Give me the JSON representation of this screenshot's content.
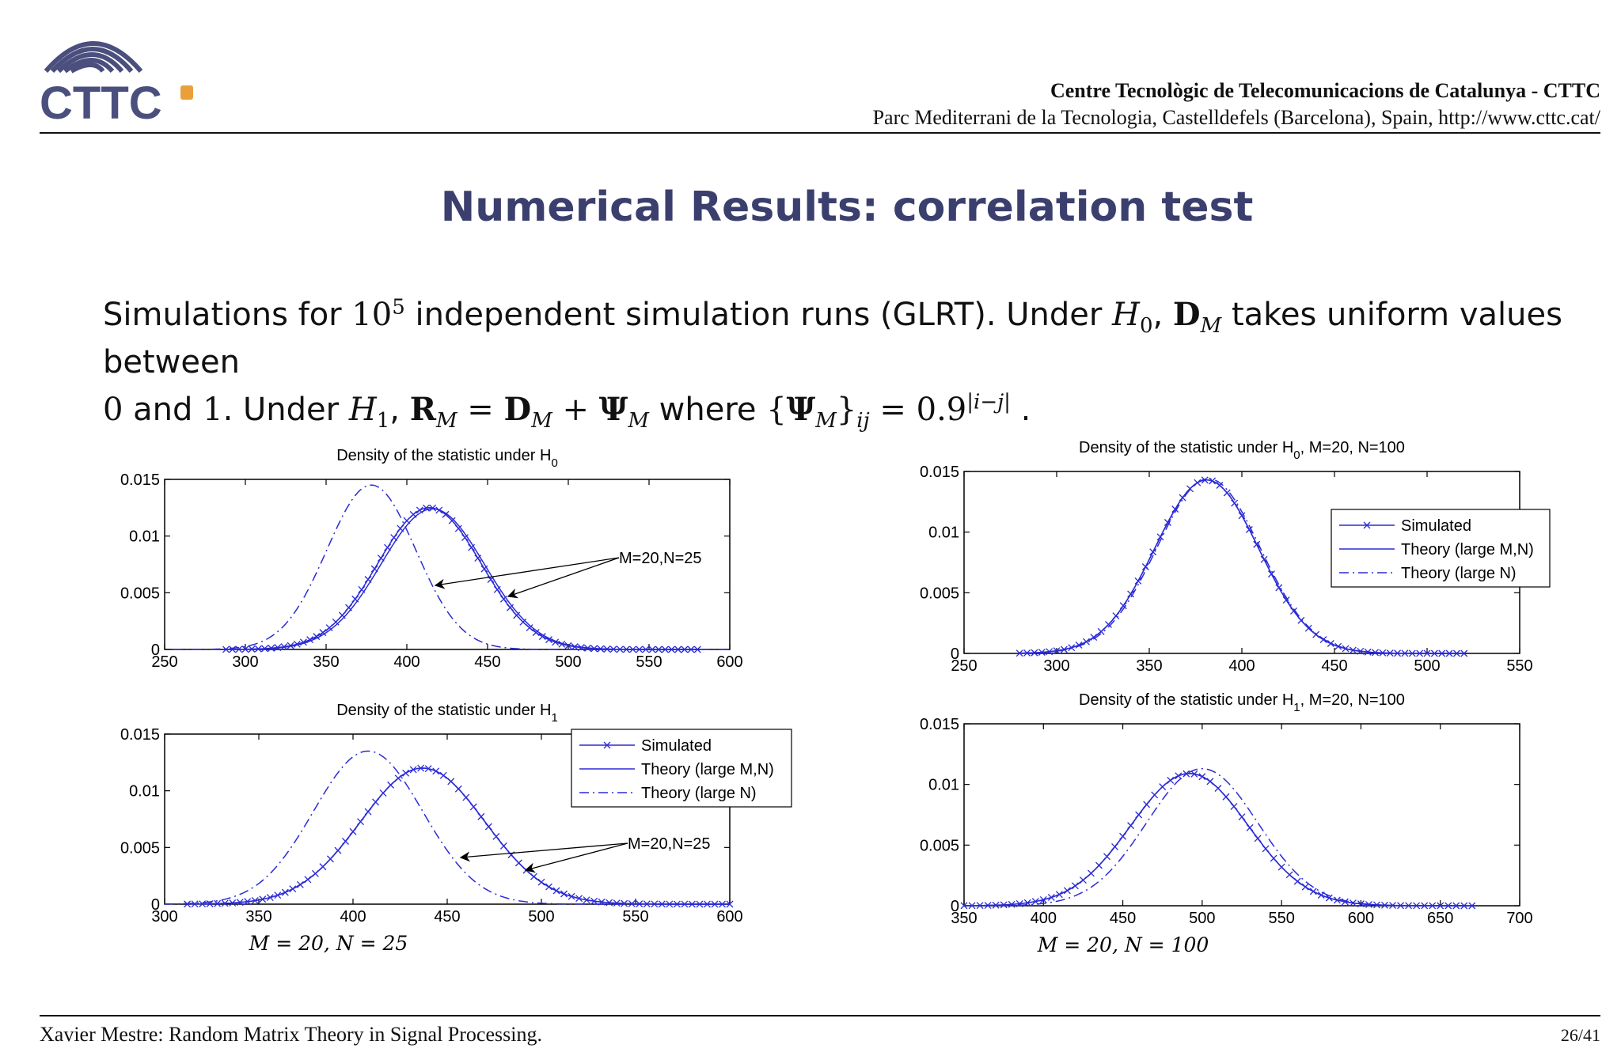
{
  "header": {
    "logo_text": "CTTC",
    "institution": "Centre Tecnològic de Telecomunicacions de Catalunya - CTTC",
    "address": "Parc Mediterrani de la Tecnologia, Castelldefels (Barcelona), Spain, http://www.cttc.cat/"
  },
  "slide": {
    "title": "Numerical Results: correlation test",
    "line1": {
      "t1": "Simulations for ",
      "pow_base": "10",
      "pow_exp": "5",
      "t2": " independent simulation runs (GLRT). Under ",
      "h0": "H",
      "h0_sub": "0",
      "comma": ", ",
      "d": "D",
      "d_sub": "M",
      "t3": " takes uniform values between"
    },
    "line2": {
      "zero": "0",
      "t1": " and ",
      "one": "1",
      "t2": ".  Under ",
      "h1": "H",
      "h1_sub": "1",
      "comma": ", ",
      "r": "R",
      "r_sub": "M",
      "eq1": " = ",
      "d": "D",
      "d_sub": "M",
      "plus": " + ",
      "psi": "Ψ",
      "psi_sub": "M",
      "t3": " where ",
      "lbrace": "{",
      "psi2": "Ψ",
      "psi2_sub": "M",
      "rbrace": "}",
      "ij": "ij",
      "eq2": " = ",
      "base": "0.9",
      "exp": "|i−j|",
      "end": " ."
    }
  },
  "footer": {
    "left": "Xavier Mestre: Random Matrix Theory in Signal Processing.",
    "right": "26/41"
  },
  "colors": {
    "title": "#3b3f6e",
    "curve": "#2b2bd6",
    "logo": "#4a4f7d",
    "logo_accent": "#e8a13a"
  },
  "chart_data": [
    {
      "type": "line",
      "title": "Density of the statistic under H",
      "title_sub": "0",
      "title_suffix": "",
      "xlim": [
        250,
        600
      ],
      "ylim": [
        0,
        0.015
      ],
      "xticks": [
        "250",
        "300",
        "350",
        "400",
        "450",
        "500",
        "550",
        "600"
      ],
      "yticks": [
        "0",
        "0.005",
        "0.01",
        "0.015"
      ],
      "caption": "",
      "annotation": "M=20,N=25",
      "series": [
        {
          "style": "markers",
          "curve": {
            "mean": 414,
            "sd": 32,
            "peak": 0.0125
          },
          "x_range": [
            288,
            580
          ],
          "marker_step": 4
        },
        {
          "style": "solid",
          "curve": {
            "mean": 416,
            "sd": 32,
            "peak": 0.0124
          },
          "x_range": [
            288,
            580
          ]
        },
        {
          "style": "dashdot",
          "curve": {
            "mean": 378,
            "sd": 27.5,
            "peak": 0.0145
          },
          "x_range": [
            255,
            600
          ]
        }
      ]
    },
    {
      "type": "line",
      "title": "Density of the statistic under H",
      "title_sub": "1",
      "title_suffix": "",
      "xlim": [
        300,
        600
      ],
      "ylim": [
        0,
        0.015
      ],
      "xticks": [
        "300",
        "350",
        "400",
        "450",
        "500",
        "550",
        "600"
      ],
      "yticks": [
        "0",
        "0.005",
        "0.01",
        "0.015"
      ],
      "caption": "M = 20, N = 25",
      "annotation": "M=20,N=25",
      "legend": [
        "Simulated",
        "Theory (large M,N)",
        "Theory (large N)"
      ],
      "series": [
        {
          "name": "Simulated",
          "style": "markers",
          "curve": {
            "mean": 437,
            "sd": 33,
            "peak": 0.012
          },
          "x_range": [
            312,
            600
          ],
          "marker_step": 4
        },
        {
          "name": "Theory (large M,N)",
          "style": "solid",
          "curve": {
            "mean": 437,
            "sd": 33,
            "peak": 0.012
          },
          "x_range": [
            312,
            600
          ]
        },
        {
          "name": "Theory (large N)",
          "style": "dashdot",
          "curve": {
            "mean": 408,
            "sd": 29,
            "peak": 0.0135
          },
          "x_range": [
            300,
            600
          ]
        }
      ]
    },
    {
      "type": "line",
      "title": "Density of the statistic under H",
      "title_sub": "0",
      "title_suffix": ", M=20, N=100",
      "xlim": [
        250,
        550
      ],
      "ylim": [
        0,
        0.015
      ],
      "xticks": [
        "250",
        "300",
        "350",
        "400",
        "450",
        "500",
        "550"
      ],
      "yticks": [
        "0",
        "0.005",
        "0.01",
        "0.015"
      ],
      "caption": "",
      "legend": [
        "Simulated",
        "Theory (large M,N)",
        "Theory (large N)"
      ],
      "series": [
        {
          "name": "Simulated",
          "style": "markers",
          "curve": {
            "mean": 381,
            "sd": 28,
            "peak": 0.0143
          },
          "x_range": [
            280,
            520
          ],
          "marker_step": 4
        },
        {
          "name": "Theory (large M,N)",
          "style": "solid",
          "curve": {
            "mean": 381,
            "sd": 28,
            "peak": 0.0143
          },
          "x_range": [
            280,
            520
          ]
        },
        {
          "name": "Theory (large N)",
          "style": "dashdot",
          "curve": {
            "mean": 382,
            "sd": 27.8,
            "peak": 0.0144
          },
          "x_range": [
            280,
            520
          ]
        }
      ]
    },
    {
      "type": "line",
      "title": "Density of the statistic under H",
      "title_sub": "1",
      "title_suffix": ", M=20, N=100",
      "xlim": [
        350,
        700
      ],
      "ylim": [
        0,
        0.015
      ],
      "xticks": [
        "350",
        "400",
        "450",
        "500",
        "550",
        "600",
        "650",
        "700"
      ],
      "yticks": [
        "0",
        "0.005",
        "0.01",
        "0.015"
      ],
      "caption": "M = 20, N = 100",
      "series": [
        {
          "style": "markers",
          "curve": {
            "mean": 492,
            "sd": 37,
            "peak": 0.0109
          },
          "x_range": [
            350,
            672
          ],
          "marker_step": 5
        },
        {
          "style": "solid",
          "curve": {
            "mean": 492,
            "sd": 37,
            "peak": 0.0109
          },
          "x_range": [
            350,
            672
          ]
        },
        {
          "style": "dashdot",
          "curve": {
            "mean": 500,
            "sd": 35,
            "peak": 0.0113
          },
          "x_range": [
            360,
            672
          ]
        }
      ]
    }
  ]
}
